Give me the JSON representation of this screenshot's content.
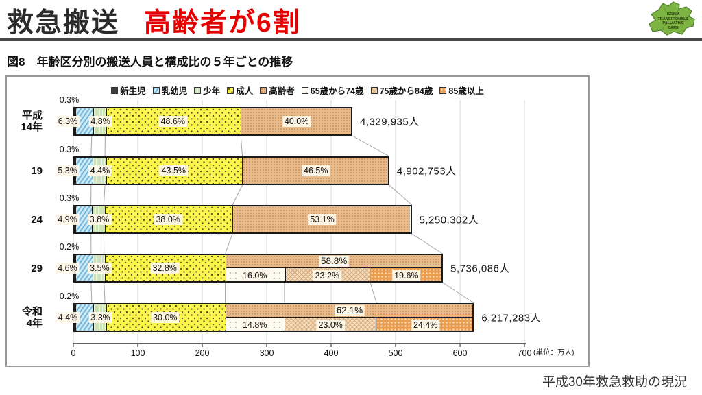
{
  "header": {
    "title_black": "救急搬送",
    "title_red": "高齢者が6割"
  },
  "logo": {
    "lines": [
      "IIZUKA",
      "TRANSITIONAL&",
      "PALLIATIVE",
      "CARE"
    ]
  },
  "figure_title": "図8　年齢区分別の搬送人員と構成比の５年ごとの推移",
  "source": "平成30年救急救助の現況",
  "chart_data": {
    "type": "bar",
    "orientation": "horizontal",
    "title": "年齢区分別の搬送人員と構成比の５年ごとの推移",
    "unit_label": "(単位：万人)",
    "xlim": [
      0,
      700
    ],
    "x_ticks": [
      0,
      100,
      200,
      300,
      400,
      500,
      600,
      700
    ],
    "grid": true,
    "legend_position": "top",
    "legend": [
      {
        "key": "newborn",
        "label": "新生児"
      },
      {
        "key": "infant",
        "label": "乳幼児"
      },
      {
        "key": "youth",
        "label": "少年"
      },
      {
        "key": "adult",
        "label": "成人"
      },
      {
        "key": "elderly",
        "label": "高齢者"
      },
      {
        "key": "e65_74",
        "label": "65歳から74歳"
      },
      {
        "key": "e75_84",
        "label": "75歳から84歳"
      },
      {
        "key": "e85",
        "label": "85歳以上"
      }
    ],
    "rows": [
      {
        "year": [
          "平成",
          "14年"
        ],
        "total_label": "4,329,935人",
        "total_man": 433.0,
        "segments": {
          "newborn": 0.3,
          "infant": 6.3,
          "youth": 4.8,
          "adult": 48.6,
          "elderly": 40.0
        },
        "elderly_split": null
      },
      {
        "year": [
          "19"
        ],
        "total_label": "4,902,753人",
        "total_man": 490.3,
        "segments": {
          "newborn": 0.3,
          "infant": 5.3,
          "youth": 4.4,
          "adult": 43.5,
          "elderly": 46.5
        },
        "elderly_split": null
      },
      {
        "year": [
          "24"
        ],
        "total_label": "5,250,302人",
        "total_man": 525.0,
        "segments": {
          "newborn": 0.3,
          "infant": 4.9,
          "youth": 3.8,
          "adult": 38.0,
          "elderly": 53.1
        },
        "elderly_split": null
      },
      {
        "year": [
          "29"
        ],
        "total_label": "5,736,086人",
        "total_man": 573.6,
        "segments": {
          "newborn": 0.2,
          "infant": 4.6,
          "youth": 3.5,
          "adult": 32.8,
          "elderly": 58.8
        },
        "elderly_split": {
          "e65_74": 16.0,
          "e75_84": 23.2,
          "e85": 19.6
        }
      },
      {
        "year": [
          "令和",
          "4年"
        ],
        "total_label": "6,217,283人",
        "total_man": 621.7,
        "segments": {
          "newborn": 0.2,
          "infant": 4.4,
          "youth": 3.3,
          "adult": 30.0,
          "elderly": 62.1
        },
        "elderly_split": {
          "e65_74": 14.8,
          "e75_84": 23.0,
          "e85": 24.4
        }
      }
    ],
    "colors": {
      "newborn": "#3d3d3d",
      "infant": "#cde9f6",
      "youth": "#cfe4b9",
      "adult": "#fbf44c",
      "elderly": "#e9bc8e",
      "e65_74": "#fdfaf1",
      "e75_84": "#f2ddbe",
      "e85": "#e99c4e",
      "accent_red": "#e60000",
      "logo_green": "#7cb342"
    }
  }
}
